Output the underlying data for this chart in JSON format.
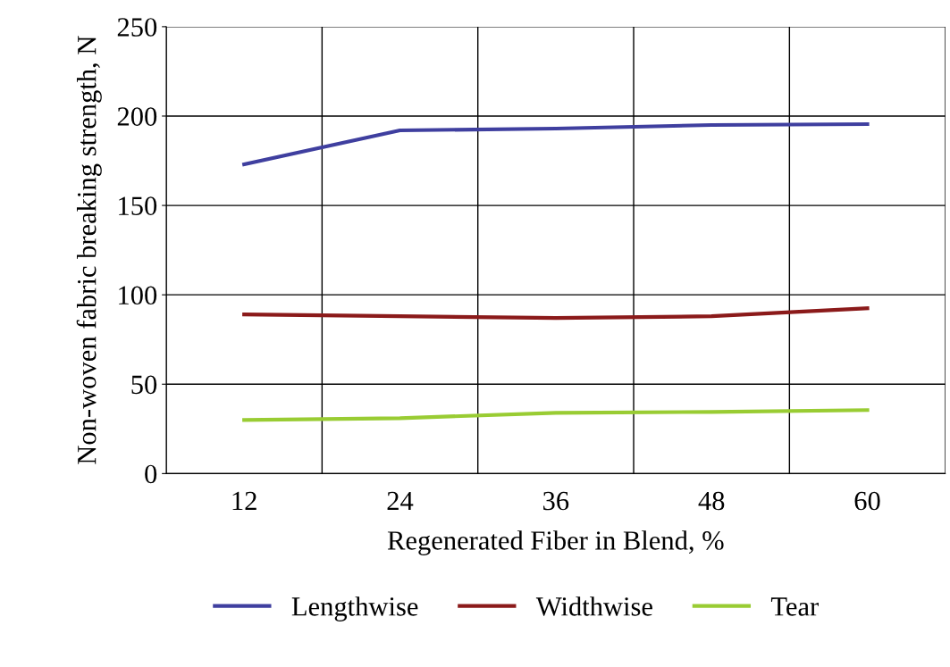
{
  "chart_data": {
    "type": "line",
    "xlabel": "Regenerated Fiber in Blend, %",
    "ylabel": "Non-woven fabric breaking strength, N",
    "categories": [
      "12",
      "24",
      "36",
      "48",
      "60"
    ],
    "series": [
      {
        "name": "Lengthwise",
        "color": "#3f3f9f",
        "values": [
          173,
          192,
          193,
          195,
          195.5
        ]
      },
      {
        "name": "Widthwise",
        "color": "#8b1a1a",
        "values": [
          89,
          88,
          87,
          88,
          92.5
        ]
      },
      {
        "name": "Tear",
        "color": "#99cc33",
        "values": [
          30,
          31,
          34,
          34.5,
          35.5
        ]
      }
    ],
    "ylim": [
      0,
      250
    ],
    "yticks": [
      0,
      50,
      100,
      150,
      200,
      250
    ],
    "grid": true,
    "legend": "bottom",
    "marker": "none",
    "line_style": "solid"
  }
}
